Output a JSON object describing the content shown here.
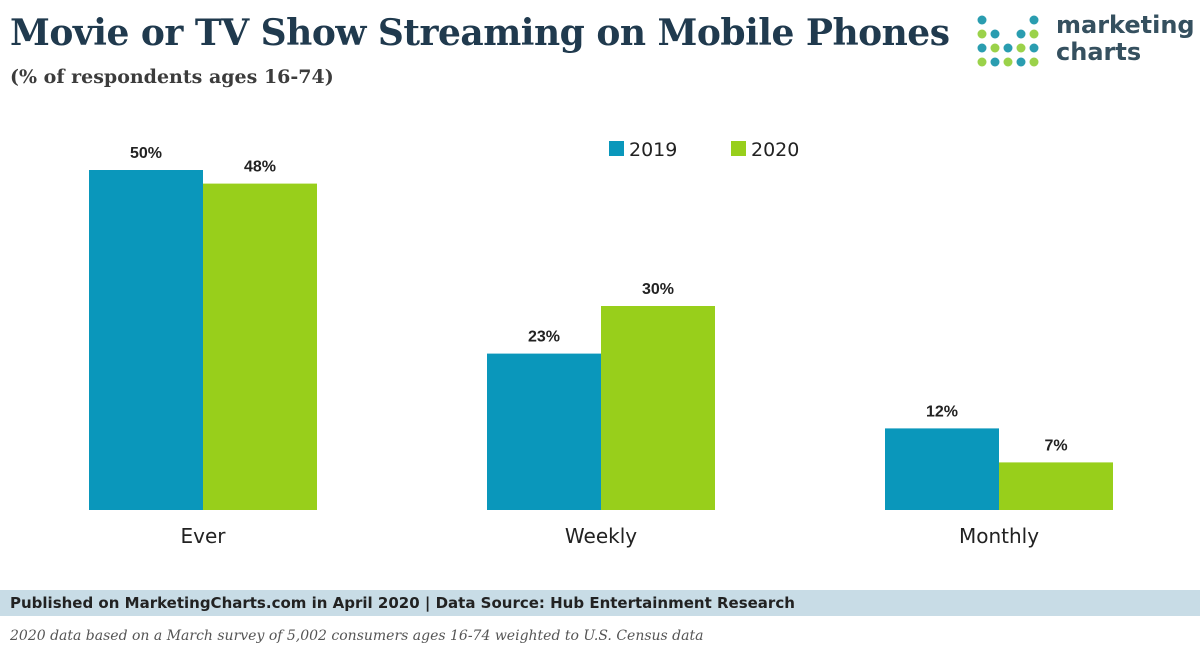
{
  "title": "Movie or TV Show Streaming on Mobile Phones",
  "subtitle": "(% of respondents ages 16-74)",
  "logo": {
    "line1": "marketing",
    "line2": "charts"
  },
  "colors": {
    "series_2019": "#0a97bb",
    "series_2020": "#98cf1b",
    "logo_dark": "#2a9db0",
    "logo_light": "#9bd24a"
  },
  "chart_data": {
    "type": "bar",
    "categories": [
      "Ever",
      "Weekly",
      "Monthly"
    ],
    "series": [
      {
        "name": "2019",
        "values": [
          50,
          23,
          12
        ],
        "labels": [
          "50%",
          "23%",
          "12%"
        ]
      },
      {
        "name": "2020",
        "values": [
          48,
          30,
          7
        ],
        "labels": [
          "48%",
          "30%",
          "7%"
        ]
      }
    ],
    "ylim": [
      0,
      50
    ],
    "xlabel": "",
    "ylabel": "",
    "legend": "top-right",
    "grid": false
  },
  "footer": {
    "published": "Published on MarketingCharts.com in April 2020 | Data Source: Hub Entertainment Research",
    "note": "2020 data based on a March survey of 5,002 consumers ages 16-74 weighted to U.S. Census data"
  }
}
